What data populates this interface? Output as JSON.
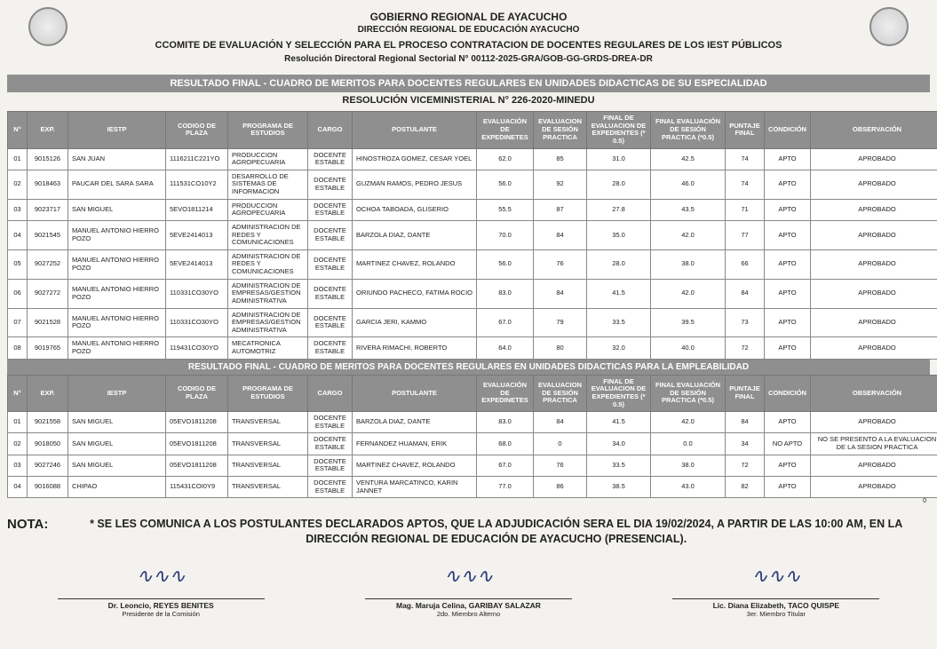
{
  "header": {
    "line1": "GOBIERNO REGIONAL DE AYACUCHO",
    "line2": "DIRECCIÓN REGIONAL DE EDUCACIÓN AYACUCHO",
    "line3": "CCOMITE DE EVALUACIÓN Y SELECCIÓN PARA EL PROCESO CONTRATACION DE DOCENTES REGULARES DE LOS IEST PÚBLICOS",
    "line4": "Resolución Directoral Regional Sectorial N° 00112-2025-GRA/GOB-GG-GRDS-DREA-DR"
  },
  "banner1": "RESULTADO FINAL - CUADRO DE MERITOS PARA DOCENTES REGULARES EN UNIDADES DIDACTICAS DE SU ESPECIALIDAD",
  "subbanner1": "RESOLUCIÓN VICEMINISTERIAL N° 226-2020-MINEDU",
  "columns": {
    "n": "N°",
    "exp": "EXP.",
    "iestp": "IESTP",
    "codigo": "CODIGO DE PLAZA",
    "programa": "PROGRAMA DE ESTUDIOS",
    "cargo": "CARGO",
    "postulante": "POSTULANTE",
    "ev_exp": "EVALUACIÓN DE EXPEDINETES",
    "ev_ses": "EVALUACION DE SESIÓN PRACTICA",
    "fin_exp": "FINAL DE EVALUACION DE EXPEDIENTES (* 0.5)",
    "fin_ses": "FINAL EVALUACIÓN DE SESIÓN PRACTICA (*0.5)",
    "puntaje": "PUNTAJE FINAL",
    "condicion": "CONDICIÓN",
    "obs": "OBSERVACIÓN"
  },
  "table1": [
    {
      "n": "01",
      "exp": "9015126",
      "iestp": "SAN JUAN",
      "codigo": "1116211C221YO",
      "programa": "PRODUCCION AGROPECUARIA",
      "cargo": "DOCENTE ESTABLE",
      "postulante": "HINOSTROZA GOMEZ, CESAR YOEL",
      "ev_exp": "62.0",
      "ev_ses": "85",
      "fin_exp": "31.0",
      "fin_ses": "42.5",
      "puntaje": "74",
      "condicion": "APTO",
      "obs": "APROBADO"
    },
    {
      "n": "02",
      "exp": "9018463",
      "iestp": "PAUCAR DEL SARA SARA",
      "codigo": "111531CO10Y2",
      "programa": "DESARROLLO DE SISTEMAS DE INFORMACION",
      "cargo": "DOCENTE ESTABLE",
      "postulante": "GUZMAN RAMOS, PEDRO JESUS",
      "ev_exp": "56.0",
      "ev_ses": "92",
      "fin_exp": "28.0",
      "fin_ses": "46.0",
      "puntaje": "74",
      "condicion": "APTO",
      "obs": "APROBADO"
    },
    {
      "n": "03",
      "exp": "9023717",
      "iestp": "SAN MIGUEL",
      "codigo": "5EVO1811214",
      "programa": "PRODUCCION AGROPECUARIA",
      "cargo": "DOCENTE ESTABLE",
      "postulante": "OCHOA TABOADA, GLISERIO",
      "ev_exp": "55.5",
      "ev_ses": "87",
      "fin_exp": "27.8",
      "fin_ses": "43.5",
      "puntaje": "71",
      "condicion": "APTO",
      "obs": "APROBADO"
    },
    {
      "n": "04",
      "exp": "9021545",
      "iestp": "MANUEL ANTONIO HIERRO POZO",
      "codigo": "5EVE2414013",
      "programa": "ADMINISTRACION DE REDES Y COMUNICACIONES",
      "cargo": "DOCENTE ESTABLE",
      "postulante": "BARZOLA DIAZ, DANTE",
      "ev_exp": "70.0",
      "ev_ses": "84",
      "fin_exp": "35.0",
      "fin_ses": "42.0",
      "puntaje": "77",
      "condicion": "APTO",
      "obs": "APROBADO"
    },
    {
      "n": "05",
      "exp": "9027252",
      "iestp": "MANUEL ANTONIO HIERRO POZO",
      "codigo": "5EVE2414013",
      "programa": "ADMINISTRACION DE REDES Y COMUNICACIONES",
      "cargo": "DOCENTE ESTABLE",
      "postulante": "MARTINEZ CHAVEZ, ROLANDO",
      "ev_exp": "56.0",
      "ev_ses": "76",
      "fin_exp": "28.0",
      "fin_ses": "38.0",
      "puntaje": "66",
      "condicion": "APTO",
      "obs": "APROBADO"
    },
    {
      "n": "06",
      "exp": "9027272",
      "iestp": "MANUEL ANTONIO HIERRO POZO",
      "codigo": "110331CO30YO",
      "programa": "ADMINISTRACION DE EMPRESAS/GESTION ADMINISTRATIVA",
      "cargo": "DOCENTE ESTABLE",
      "postulante": "ORIUNDO PACHECO, FATIMA ROCIO",
      "ev_exp": "83.0",
      "ev_ses": "84",
      "fin_exp": "41.5",
      "fin_ses": "42.0",
      "puntaje": "84",
      "condicion": "APTO",
      "obs": "APROBADO"
    },
    {
      "n": "07",
      "exp": "9021528",
      "iestp": "MANUEL ANTONIO HIERRO POZO",
      "codigo": "110331CO30YO",
      "programa": "ADMINISTRACION DE EMPRESAS/GESTION ADMINISTRATIVA",
      "cargo": "DOCENTE ESTABLE",
      "postulante": "GARCIA JERI, KAMMO",
      "ev_exp": "67.0",
      "ev_ses": "79",
      "fin_exp": "33.5",
      "fin_ses": "39.5",
      "puntaje": "73",
      "condicion": "APTO",
      "obs": "APROBADO"
    },
    {
      "n": "08",
      "exp": "9019765",
      "iestp": "MANUEL ANTONIO HIERRO POZO",
      "codigo": "119431CO30YO",
      "programa": "MECATRONICA AUTOMOTRIZ",
      "cargo": "DOCENTE ESTABLE",
      "postulante": "RIVERA RIMACHI, ROBERTO",
      "ev_exp": "64.0",
      "ev_ses": "80",
      "fin_exp": "32.0",
      "fin_ses": "40.0",
      "puntaje": "72",
      "condicion": "APTO",
      "obs": "APROBADO"
    }
  ],
  "banner2": "RESULTADO FINAL - CUADRO DE MERITOS PARA DOCENTES REGULARES EN UNIDADES DIDACTICAS PARA LA EMPLEABILIDAD",
  "table2": [
    {
      "n": "01",
      "exp": "9021558",
      "iestp": "SAN MIGUEL",
      "codigo": "05EVO1811208",
      "programa": "TRANSVERSAL",
      "cargo": "DOCENTE ESTABLE",
      "postulante": "BARZOLA DIAZ, DANTE",
      "ev_exp": "83.0",
      "ev_ses": "84",
      "fin_exp": "41.5",
      "fin_ses": "42.0",
      "puntaje": "84",
      "condicion": "APTO",
      "obs": "APROBADO"
    },
    {
      "n": "02",
      "exp": "9018050",
      "iestp": "SAN MIGUEL",
      "codigo": "05EVO1811208",
      "programa": "TRANSVERSAL",
      "cargo": "DOCENTE ESTABLE",
      "postulante": "FERNANDEZ HUAMAN, ERIK",
      "ev_exp": "68.0",
      "ev_ses": "0",
      "fin_exp": "34.0",
      "fin_ses": "0.0",
      "puntaje": "34",
      "condicion": "NO APTO",
      "obs": "NO SE PRESENTO A LA EVALUACION DE LA SESION PRACTICA"
    },
    {
      "n": "03",
      "exp": "9027246",
      "iestp": "SAN MIGUEL",
      "codigo": "05EVO1811208",
      "programa": "TRANSVERSAL",
      "cargo": "DOCENTE ESTABLE",
      "postulante": "MARTINEZ CHAVEZ, ROLANDO",
      "ev_exp": "67.0",
      "ev_ses": "76",
      "fin_exp": "33.5",
      "fin_ses": "38.0",
      "puntaje": "72",
      "condicion": "APTO",
      "obs": "APROBADO"
    },
    {
      "n": "04",
      "exp": "9016088",
      "iestp": "CHIPAO",
      "codigo": "115431COI0Y9",
      "programa": "TRANSVERSAL",
      "cargo": "DOCENTE ESTABLE",
      "postulante": "VENTURA MARCATINCO, KARIN JANNET",
      "ev_exp": "77.0",
      "ev_ses": "86",
      "fin_exp": "38.5",
      "fin_ses": "43.0",
      "puntaje": "82",
      "condicion": "APTO",
      "obs": "APROBADO"
    }
  ],
  "zero_marker": "0",
  "nota": {
    "label": "NOTA:",
    "text": "* SE LES COMUNICA A LOS POSTULANTES DECLARADOS APTOS, QUE LA ADJUDICACIÓN SERA EL DIA 19/02/2024, A PARTIR DE LAS 10:00 AM, EN LA DIRECCIÓN REGIONAL DE EDUCACIÓN DE AYACUCHO (PRESENCIAL)."
  },
  "signatures": [
    {
      "name": "Dr. Leoncio, REYES BENITES",
      "role": "Presidente de la Comisión"
    },
    {
      "name": "Mag. Maruja Celina, GARIBAY SALAZAR",
      "role": "2do. Miembro Alterno"
    },
    {
      "name": "Lic. Diana Elizabeth, TACO QUISPE",
      "role": "3er. Miembro Titular"
    }
  ]
}
